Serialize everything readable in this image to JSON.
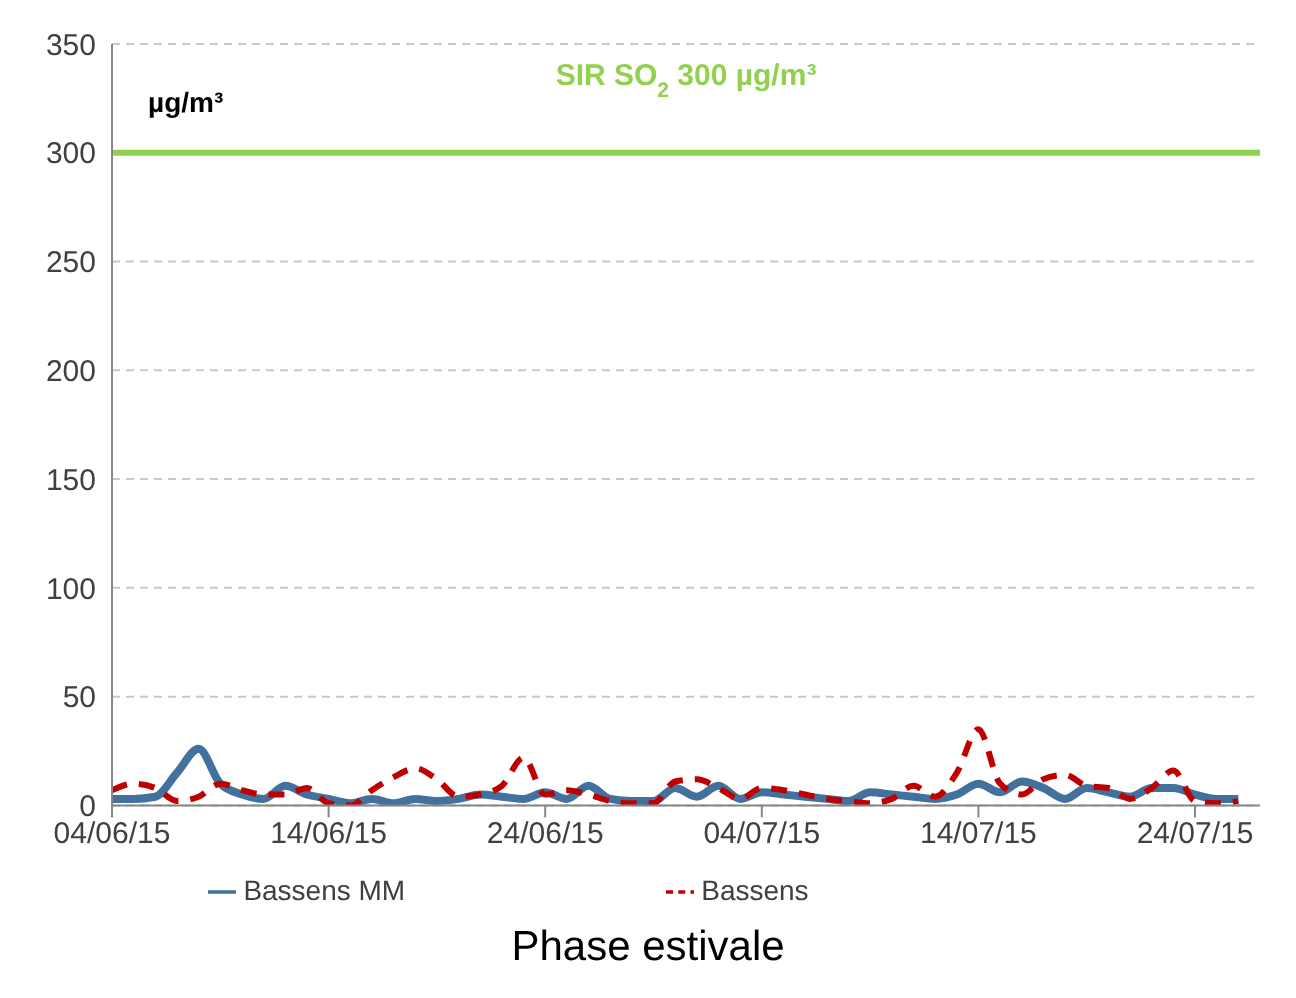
{
  "chart_data": {
    "type": "line",
    "xlabel": "Phase estivale",
    "annotations": [
      "µg/m³"
    ],
    "x": [
      "--06-04",
      "--06-05",
      "--06-06",
      "--06-07",
      "--06-08",
      "--06-09",
      "--06-10",
      "--06-11",
      "--06-12",
      "--06-13",
      "--06-14",
      "--06-15",
      "--06-16",
      "--06-17",
      "--06-18",
      "--06-19",
      "--06-20",
      "--06-21",
      "--06-22",
      "--06-23",
      "--06-24",
      "--06-25",
      "--06-26",
      "--06-27",
      "--06-28",
      "--06-29",
      "--06-30",
      "--07-01",
      "--07-02",
      "--07-03",
      "--07-04",
      "--07-05",
      "--07-06",
      "--07-07",
      "--07-08",
      "--07-09",
      "--07-10",
      "--07-11",
      "--07-12",
      "--07-13",
      "--07-14",
      "--07-15",
      "--07-16",
      "--07-17",
      "--07-18",
      "--07-19",
      "--07-20",
      "--07-21",
      "--07-22",
      "--07-23",
      "--07-24",
      "--07-25",
      "--07-26"
    ],
    "series": [
      {
        "name": "Bassens MM",
        "color": "#41719c",
        "line_style": "solid",
        "values": [
          3,
          3,
          4,
          15,
          26,
          10,
          5,
          3,
          9,
          5,
          3,
          1,
          3,
          1,
          3,
          2,
          3,
          5,
          4,
          3,
          6,
          3,
          9,
          3,
          2,
          2,
          8,
          4,
          9,
          3,
          6,
          5,
          4,
          3,
          2,
          6,
          5,
          4,
          3,
          5,
          10,
          6,
          11,
          8,
          3,
          8,
          6,
          4,
          8,
          8,
          5,
          3,
          3
        ]
      },
      {
        "name": "Bassens",
        "color": "#c00000",
        "line_style": "dashed",
        "values": [
          7,
          10,
          8,
          2,
          4,
          10,
          7,
          5,
          5,
          8,
          1,
          0,
          7,
          13,
          17,
          12,
          4,
          5,
          9,
          22,
          5,
          7,
          5,
          2,
          1,
          1,
          11,
          12,
          8,
          3,
          8,
          7,
          5,
          3,
          2,
          1,
          3,
          9,
          4,
          15,
          35,
          10,
          5,
          12,
          14,
          9,
          8,
          3,
          8,
          16,
          2,
          1,
          2
        ]
      }
    ],
    "xlim": [
      "--06-04",
      "--07-27"
    ],
    "xticks": [
      {
        "value": "--06-04",
        "label": "04/06/15"
      },
      {
        "value": "--06-14",
        "label": "14/06/15"
      },
      {
        "value": "--06-24",
        "label": "24/06/15"
      },
      {
        "value": "--07-04",
        "label": "04/07/15"
      },
      {
        "value": "--07-14",
        "label": "14/07/15"
      },
      {
        "value": "--07-24",
        "label": "24/07/15"
      }
    ],
    "ylim": [
      0,
      350
    ],
    "yticks": [
      0,
      50,
      100,
      150,
      200,
      250,
      300,
      350
    ],
    "ref_lines": [
      {
        "axis": "y",
        "value": 300,
        "label": "SIR SO$_{2}$ 300 µg/m³",
        "color": "#92d050"
      }
    ],
    "grid": "y",
    "legend": "bottom",
    "marker": "none"
  }
}
